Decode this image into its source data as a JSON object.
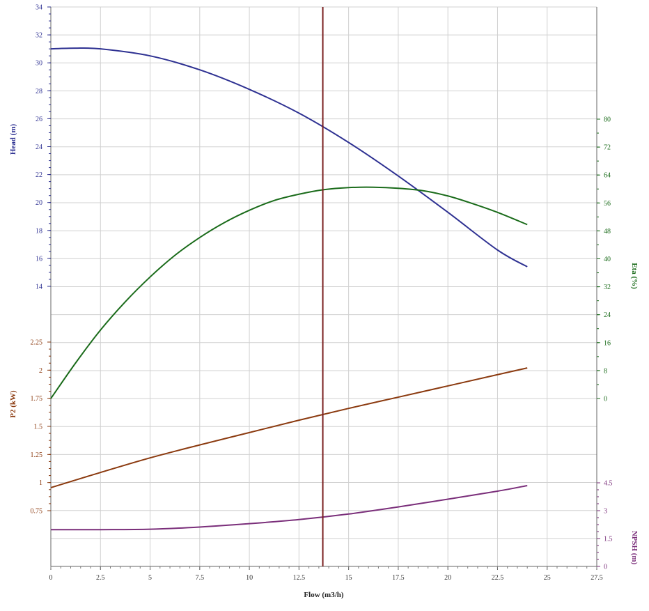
{
  "chart_data": {
    "type": "line",
    "title": "",
    "xlabel": "Flow (m3/h)",
    "xlim": [
      0,
      27.5
    ],
    "x_ticks": [
      "0",
      "2.5",
      "5",
      "7.5",
      "10",
      "12.5",
      "15",
      "17.5",
      "20",
      "22.5",
      "25",
      "27.5"
    ],
    "grid": true,
    "operating_point_flow": 13.7,
    "axes": {
      "head": {
        "label": "Head (m)",
        "color": "#2e3192",
        "side": "left",
        "range": [
          14,
          34
        ],
        "ticks": [
          "14",
          "16",
          "18",
          "20",
          "22",
          "24",
          "26",
          "28",
          "30",
          "32",
          "34"
        ]
      },
      "p2": {
        "label": "P2 (kW)",
        "color": "#8b3a0f",
        "side": "left",
        "range": [
          0.75,
          2.25
        ],
        "ticks": [
          "0.75",
          "1",
          "1.25",
          "1.5",
          "1.75",
          "2",
          "2.25"
        ]
      },
      "eta": {
        "label": "Eta (%)",
        "color": "#1a6b1a",
        "side": "right",
        "range": [
          0,
          80
        ],
        "ticks": [
          "0",
          "8",
          "16",
          "24",
          "32",
          "40",
          "48",
          "56",
          "64",
          "72",
          "80"
        ]
      },
      "npsh": {
        "label": "NPSH (m)",
        "color": "#7a2e7a",
        "side": "right",
        "range": [
          0,
          4.5
        ],
        "ticks": [
          "0",
          "1.5",
          "3",
          "4.5"
        ]
      }
    },
    "series": [
      {
        "axis": "head",
        "color": "#2e3192",
        "x": [
          0,
          1.2,
          2.5,
          5,
          7.5,
          10,
          12.5,
          15,
          17.5,
          20,
          22.5,
          24
        ],
        "y": [
          31.0,
          31.05,
          31.0,
          30.5,
          29.5,
          28.1,
          26.4,
          24.3,
          21.9,
          19.3,
          16.6,
          15.4
        ]
      },
      {
        "axis": "eta",
        "color": "#1a6b1a",
        "x": [
          0,
          1.25,
          2.5,
          3.75,
          5,
          6.25,
          7.5,
          8.75,
          10,
          11.25,
          12.5,
          13.75,
          15,
          16.25,
          17.5,
          18.75,
          20,
          21.25,
          22.5,
          24
        ],
        "y": [
          0,
          10.2,
          19.6,
          27.7,
          34.8,
          41.0,
          46.1,
          50.4,
          53.9,
          56.7,
          58.5,
          59.8,
          60.4,
          60.5,
          60.2,
          59.5,
          58.0,
          55.8,
          53.3,
          49.8
        ]
      },
      {
        "axis": "p2",
        "color": "#8b3a0f",
        "x": [
          0,
          2.5,
          5,
          7.5,
          10,
          12.5,
          15,
          17.5,
          20,
          22.5,
          24
        ],
        "y": [
          0.955,
          1.09,
          1.22,
          1.335,
          1.445,
          1.555,
          1.66,
          1.76,
          1.86,
          1.96,
          2.02
        ]
      },
      {
        "axis": "npsh",
        "color": "#7a2e7a",
        "x": [
          0,
          2.5,
          5,
          7.5,
          10,
          12.5,
          15,
          17.5,
          20,
          22.5,
          24
        ],
        "y": [
          1.98,
          1.98,
          2.0,
          2.12,
          2.3,
          2.52,
          2.82,
          3.2,
          3.62,
          4.05,
          4.35
        ]
      }
    ]
  }
}
